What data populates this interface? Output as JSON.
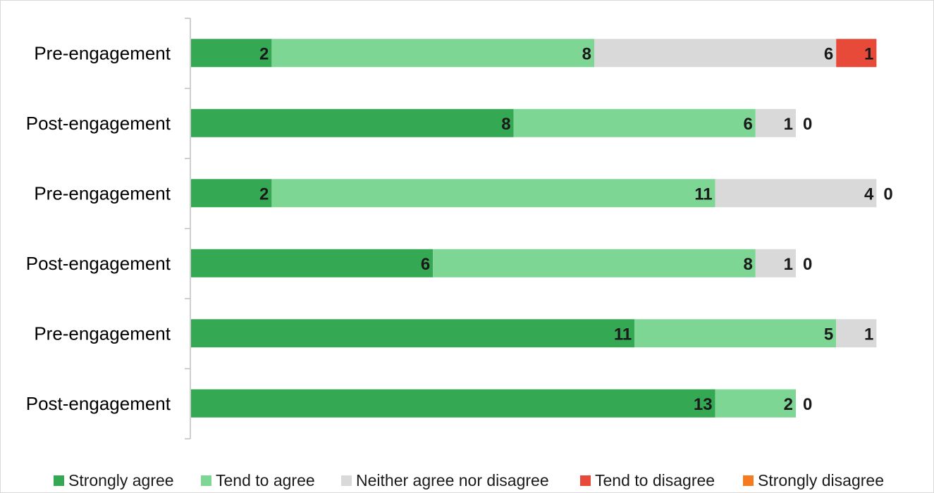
{
  "chart_data": {
    "type": "bar",
    "orientation": "horizontal",
    "stacked": true,
    "categories": [
      "Pre-engagement",
      "Post-engagement",
      "Pre-engagement",
      "Post-engagement",
      "Pre-engagement",
      "Post-engagement"
    ],
    "series": [
      {
        "name": "Strongly agree",
        "color": "#34a853",
        "values": [
          2,
          8,
          2,
          6,
          11,
          13
        ]
      },
      {
        "name": "Tend to agree",
        "color": "#7dd694",
        "values": [
          8,
          6,
          11,
          8,
          5,
          2
        ]
      },
      {
        "name": "Neither agree nor disagree",
        "color": "#d9d9d9",
        "values": [
          6,
          1,
          4,
          1,
          1,
          0
        ]
      },
      {
        "name": "Tend to disagree",
        "color": "#e84a3a",
        "values": [
          1,
          0,
          0,
          0,
          0,
          0
        ]
      },
      {
        "name": "Strongly disagree",
        "color": "#f47b20",
        "values": [
          0,
          0,
          0,
          0,
          0,
          0
        ]
      }
    ],
    "data_labels": [
      [
        "2",
        "8",
        "6",
        "1"
      ],
      [
        "8",
        "6",
        "1",
        "0"
      ],
      [
        "2",
        "11",
        "4",
        "0"
      ],
      [
        "6",
        "8",
        "1",
        "0"
      ],
      [
        "11",
        "5",
        "1"
      ],
      [
        "13",
        "2",
        "0"
      ]
    ],
    "title": "",
    "xlabel": "",
    "ylabel": "",
    "xlim": [
      0,
      17
    ],
    "grid": false,
    "legend": "bottom"
  }
}
